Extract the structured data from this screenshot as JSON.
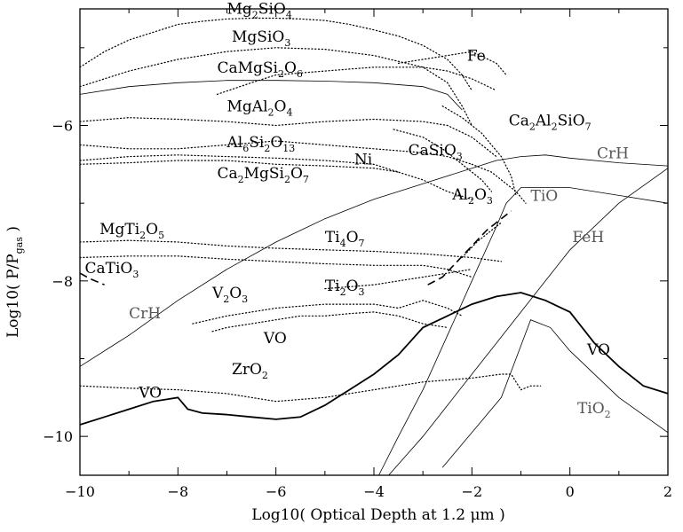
{
  "chart_data": {
    "type": "line",
    "xlabel": "Log10( Optical Depth at 1.2 μm )",
    "ylabel": "Log10( P/P_gas )",
    "xlim": [
      -10,
      2
    ],
    "ylim": [
      -10.5,
      -4.5
    ],
    "xticks": [
      "−10",
      "−8",
      "−6",
      "−4",
      "−2",
      "0",
      "2"
    ],
    "yticks": [
      "−10",
      "−8",
      "−6"
    ],
    "grid": false,
    "series": [
      {
        "name": "Mg2SiO4",
        "style": "dotted",
        "x": [
          -10,
          -9.5,
          -9,
          -8.5,
          -8,
          -7.5,
          -7,
          -6.5,
          -6,
          -5.5,
          -5,
          -4.5,
          -4,
          -3.5,
          -3,
          -2.5,
          -2.2,
          -2
        ],
        "y": [
          -5.25,
          -5.05,
          -4.9,
          -4.8,
          -4.7,
          -4.66,
          -4.63,
          -4.62,
          -4.62,
          -4.63,
          -4.65,
          -4.7,
          -4.77,
          -4.85,
          -4.97,
          -5.15,
          -5.35,
          -5.55
        ]
      },
      {
        "name": "MgSiO3",
        "style": "dotted",
        "x": [
          -10,
          -9,
          -8,
          -7,
          -6,
          -5,
          -4,
          -3,
          -2.5,
          -2.2,
          -2
        ],
        "y": [
          -5.5,
          -5.3,
          -5.15,
          -5.05,
          -5.0,
          -5.02,
          -5.1,
          -5.25,
          -5.45,
          -5.75,
          -6.0
        ]
      },
      {
        "name": "CaMgSi2O6",
        "style": "dotted",
        "x": [
          -7.2,
          -6.5,
          -6,
          -5,
          -4,
          -3,
          -2.5,
          -2,
          -1.5
        ],
        "y": [
          -5.6,
          -5.45,
          -5.35,
          -5.3,
          -5.25,
          -5.25,
          -5.3,
          -5.4,
          -5.55
        ]
      },
      {
        "name": "",
        "style": "thin",
        "x": [
          -10,
          -9,
          -8,
          -7,
          -6,
          -5,
          -4,
          -3,
          -2.5,
          -2.2
        ],
        "y": [
          -5.6,
          -5.5,
          -5.45,
          -5.42,
          -5.42,
          -5.43,
          -5.45,
          -5.5,
          -5.6,
          -5.8
        ]
      },
      {
        "name": "Fe",
        "style": "dotted",
        "x": [
          -3.5,
          -3,
          -2.5,
          -2,
          -1.5,
          -1.3
        ],
        "y": [
          -5.2,
          -5.15,
          -5.1,
          -5.05,
          -5.2,
          -5.35
        ]
      },
      {
        "name": "MgAl2O4",
        "style": "dotted",
        "x": [
          -10,
          -9,
          -8,
          -7,
          -6,
          -5,
          -4,
          -3,
          -2.5,
          -2,
          -1.5
        ],
        "y": [
          -5.95,
          -5.9,
          -5.92,
          -5.95,
          -6.0,
          -5.95,
          -5.92,
          -5.95,
          -6.0,
          -6.15,
          -6.4
        ]
      },
      {
        "name": "Ca2Al2SiO7",
        "style": "dotted",
        "x": [
          -2.6,
          -2.2,
          -1.8,
          -1.4,
          -1.2,
          -1.1
        ],
        "y": [
          -5.75,
          -5.9,
          -6.1,
          -6.4,
          -6.65,
          -6.9
        ]
      },
      {
        "name": "Al6Si2O13",
        "style": "dotted",
        "x": [
          -10,
          -9,
          -8,
          -7,
          -6,
          -5,
          -4,
          -3,
          -2.5,
          -2
        ],
        "y": [
          -6.25,
          -6.3,
          -6.3,
          -6.25,
          -6.2,
          -6.25,
          -6.3,
          -6.35,
          -6.4,
          -6.5
        ]
      },
      {
        "name": "Ca2MgSi2O7",
        "style": "dotted",
        "x": [
          -10,
          -9,
          -8,
          -7,
          -6,
          -5,
          -4,
          -3.5
        ],
        "y": [
          -6.5,
          -6.48,
          -6.45,
          -6.45,
          -6.5,
          -6.52,
          -6.55,
          -6.6
        ]
      },
      {
        "name": "Ni",
        "style": "dotted",
        "x": [
          -10,
          -9,
          -8,
          -7,
          -6,
          -5,
          -4,
          -3,
          -2.5,
          -2
        ],
        "y": [
          -6.45,
          -6.4,
          -6.38,
          -6.4,
          -6.42,
          -6.45,
          -6.5,
          -6.7,
          -6.85,
          -6.95
        ]
      },
      {
        "name": "CaSiO3",
        "style": "dotted",
        "x": [
          -3.6,
          -3,
          -2.6,
          -2.2,
          -1.8,
          -1.6
        ],
        "y": [
          -6.05,
          -6.15,
          -6.3,
          -6.5,
          -6.7,
          -6.85
        ]
      },
      {
        "name": "Al2O3",
        "style": "dotted",
        "x": [
          -2,
          -1.6,
          -1.3,
          -1.1,
          -0.9
        ],
        "y": [
          -6.5,
          -6.6,
          -6.75,
          -6.85,
          -7.0
        ]
      },
      {
        "name": "CrH",
        "style": "thin",
        "x": [
          -10,
          -9,
          -8,
          -7,
          -6,
          -5,
          -4,
          -3,
          -2,
          -1.5,
          -1,
          -0.5,
          0,
          1,
          2
        ],
        "y": [
          -9.1,
          -8.7,
          -8.25,
          -7.85,
          -7.5,
          -7.2,
          -6.95,
          -6.75,
          -6.55,
          -6.45,
          -6.4,
          -6.38,
          -6.42,
          -6.48,
          -6.52
        ]
      },
      {
        "name": "MgTi2O5",
        "style": "dotted",
        "x": [
          -10,
          -9,
          -8,
          -7,
          -6,
          -5,
          -4,
          -3,
          -2,
          -1.4
        ],
        "y": [
          -7.5,
          -7.48,
          -7.5,
          -7.55,
          -7.58,
          -7.6,
          -7.62,
          -7.65,
          -7.7,
          -7.75
        ]
      },
      {
        "name": "Ti4O7",
        "style": "dotted",
        "x": [
          -10,
          -9,
          -8,
          -7,
          -6,
          -5,
          -4,
          -3,
          -2.5,
          -2
        ],
        "y": [
          -7.7,
          -7.68,
          -7.68,
          -7.72,
          -7.75,
          -7.78,
          -7.8,
          -7.8,
          -7.85,
          -7.95
        ]
      },
      {
        "name": "",
        "style": "dashed",
        "x": [
          -2.9,
          -2.6,
          -2.3,
          -2.0,
          -1.7,
          -1.4,
          -1.2
        ],
        "y": [
          -8.05,
          -7.95,
          -7.75,
          -7.55,
          -7.35,
          -7.2,
          -7.1
        ]
      },
      {
        "name": "",
        "style": "dotted",
        "x": [
          -2.2,
          -1.9,
          -1.6,
          -1.4
        ],
        "y": [
          -7.7,
          -7.5,
          -7.35,
          -7.25
        ]
      },
      {
        "name": "CaTiO3",
        "style": "dashed",
        "x": [
          -10,
          -9.8,
          -9.5
        ],
        "y": [
          -7.9,
          -7.97,
          -8.05
        ]
      },
      {
        "name": "Ti2O3",
        "style": "dotted",
        "x": [
          -5,
          -4,
          -3,
          -2.5,
          -2
        ],
        "y": [
          -8.1,
          -8.05,
          -7.95,
          -7.9,
          -7.85
        ]
      },
      {
        "name": "V2O3",
        "style": "dotted",
        "x": [
          -7.7,
          -7,
          -6,
          -5,
          -4,
          -3.5,
          -3,
          -2.5,
          -2.2
        ],
        "y": [
          -8.55,
          -8.45,
          -8.35,
          -8.3,
          -8.3,
          -8.35,
          -8.25,
          -8.35,
          -8.45
        ]
      },
      {
        "name": "VO (dotted)",
        "style": "dotted",
        "x": [
          -7.3,
          -7,
          -6.5,
          -6,
          -5.5,
          -5,
          -4.5,
          -4,
          -3.5,
          -3,
          -2.5
        ],
        "y": [
          -8.65,
          -8.6,
          -8.55,
          -8.5,
          -8.45,
          -8.45,
          -8.42,
          -8.4,
          -8.45,
          -8.55,
          -8.6
        ]
      },
      {
        "name": "TiO",
        "style": "thin",
        "x": [
          -3.9,
          -3.5,
          -3,
          -2.5,
          -2,
          -1.5,
          -1.3,
          -1,
          -0.8,
          0,
          1,
          2
        ],
        "y": [
          -10.5,
          -10.0,
          -9.4,
          -8.7,
          -8.0,
          -7.3,
          -7.0,
          -6.8,
          -6.8,
          -6.8,
          -6.9,
          -7.0
        ]
      },
      {
        "name": "FeH",
        "style": "thin",
        "x": [
          -3.7,
          -3,
          -2.5,
          -2,
          -1.5,
          -1,
          -0.5,
          0,
          1,
          2
        ],
        "y": [
          -10.5,
          -10.0,
          -9.6,
          -9.2,
          -8.8,
          -8.4,
          -8.0,
          -7.6,
          -7.0,
          -6.55
        ]
      },
      {
        "name": "TiO2",
        "style": "thin",
        "x": [
          -2.6,
          -2.2,
          -1.8,
          -1.4,
          -1.1,
          -0.8,
          -0.6,
          -0.4,
          0,
          1,
          2
        ],
        "y": [
          -10.4,
          -10.1,
          -9.8,
          -9.5,
          -9.0,
          -8.5,
          -8.55,
          -8.6,
          -8.9,
          -9.5,
          -9.95
        ]
      },
      {
        "name": "ZrO2",
        "style": "dotted",
        "x": [
          -10,
          -9,
          -8,
          -7,
          -6,
          -5,
          -4,
          -3,
          -2,
          -1.4,
          -1.2,
          -1,
          -0.8,
          -0.6
        ],
        "y": [
          -9.35,
          -9.38,
          -9.4,
          -9.45,
          -9.55,
          -9.5,
          -9.4,
          -9.3,
          -9.25,
          -9.2,
          -9.2,
          -9.4,
          -9.35,
          -9.35
        ]
      },
      {
        "name": "VO",
        "style": "thick",
        "x": [
          -10,
          -9.5,
          -9,
          -8.5,
          -8.2,
          -8,
          -7.8,
          -7.5,
          -7,
          -6.5,
          -6,
          -5.5,
          -5,
          -4.5,
          -4,
          -3.5,
          -3,
          -2.5,
          -2,
          -1.5,
          -1,
          -0.5,
          0,
          0.5,
          1,
          1.5,
          2
        ],
        "y": [
          -9.85,
          -9.75,
          -9.65,
          -9.55,
          -9.52,
          -9.5,
          -9.65,
          -9.7,
          -9.72,
          -9.75,
          -9.78,
          -9.75,
          -9.6,
          -9.4,
          -9.2,
          -8.95,
          -8.6,
          -8.45,
          -8.3,
          -8.2,
          -8.15,
          -8.25,
          -8.4,
          -8.8,
          -9.1,
          -9.35,
          -9.45
        ]
      }
    ],
    "annotations": [
      {
        "x": -7.0,
        "y": -4.56,
        "parts": [
          [
            "Mg",
            ""
          ],
          [
            "2",
            "sub"
          ],
          [
            "SiO",
            ""
          ],
          [
            "4",
            "sub"
          ]
        ]
      },
      {
        "x": -6.9,
        "y": -4.92,
        "parts": [
          [
            "MgSiO",
            ""
          ],
          [
            "3",
            "sub"
          ]
        ]
      },
      {
        "x": -7.2,
        "y": -5.32,
        "parts": [
          [
            "CaMgSi",
            ""
          ],
          [
            "2",
            "sub"
          ],
          [
            "O",
            ""
          ],
          [
            "6",
            "sub"
          ]
        ]
      },
      {
        "x": -2.1,
        "y": -5.17,
        "parts": [
          [
            "Fe",
            ""
          ]
        ]
      },
      {
        "x": -7.0,
        "y": -5.82,
        "parts": [
          [
            "MgAl",
            ""
          ],
          [
            "2",
            "sub"
          ],
          [
            "O",
            ""
          ],
          [
            "4",
            "sub"
          ]
        ]
      },
      {
        "x": -1.25,
        "y": -6.0,
        "parts": [
          [
            "Ca",
            ""
          ],
          [
            "2",
            "sub"
          ],
          [
            "Al",
            ""
          ],
          [
            "2",
            "sub"
          ],
          [
            "SiO",
            ""
          ],
          [
            "7",
            "sub"
          ]
        ]
      },
      {
        "x": -7.0,
        "y": -6.28,
        "parts": [
          [
            "Al",
            ""
          ],
          [
            "6",
            "sub"
          ],
          [
            "Si",
            ""
          ],
          [
            "2",
            "sub"
          ],
          [
            "O",
            ""
          ],
          [
            "13",
            "sub"
          ]
        ]
      },
      {
        "x": -3.3,
        "y": -6.38,
        "parts": [
          [
            "CaSiO",
            ""
          ],
          [
            "3",
            "sub"
          ]
        ]
      },
      {
        "x": -4.4,
        "y": -6.5,
        "parts": [
          [
            "Ni",
            ""
          ]
        ]
      },
      {
        "x": -7.2,
        "y": -6.68,
        "parts": [
          [
            "Ca",
            ""
          ],
          [
            "2",
            "sub"
          ],
          [
            "MgSi",
            ""
          ],
          [
            "2",
            "sub"
          ],
          [
            "O",
            ""
          ],
          [
            "7",
            "sub"
          ]
        ]
      },
      {
        "x": 0.55,
        "y": -6.42,
        "parts": [
          [
            "CrH",
            ""
          ]
        ],
        "grey": true
      },
      {
        "x": -2.4,
        "y": -6.95,
        "parts": [
          [
            "Al",
            ""
          ],
          [
            "2",
            "sub"
          ],
          [
            "O",
            ""
          ],
          [
            "3",
            "sub"
          ]
        ]
      },
      {
        "x": -0.8,
        "y": -6.97,
        "parts": [
          [
            "TiO",
            ""
          ]
        ],
        "grey": true
      },
      {
        "x": -9.6,
        "y": -7.4,
        "parts": [
          [
            "MgTi",
            ""
          ],
          [
            "2",
            "sub"
          ],
          [
            "O",
            ""
          ],
          [
            "5",
            "sub"
          ]
        ]
      },
      {
        "x": -5.0,
        "y": -7.5,
        "parts": [
          [
            "Ti",
            ""
          ],
          [
            "4",
            "sub"
          ],
          [
            "O",
            ""
          ],
          [
            "7",
            "sub"
          ]
        ]
      },
      {
        "x": 0.05,
        "y": -7.5,
        "parts": [
          [
            "FeH",
            ""
          ]
        ],
        "grey": true
      },
      {
        "x": -9.9,
        "y": -7.9,
        "parts": [
          [
            "CaTiO",
            ""
          ],
          [
            "3",
            "sub"
          ]
        ]
      },
      {
        "x": -5.0,
        "y": -8.13,
        "parts": [
          [
            "Ti",
            ""
          ],
          [
            "2",
            "sub"
          ],
          [
            "O",
            ""
          ],
          [
            "3",
            "sub"
          ]
        ]
      },
      {
        "x": -9.0,
        "y": -8.48,
        "parts": [
          [
            "CrH",
            ""
          ]
        ],
        "grey": true
      },
      {
        "x": -7.3,
        "y": -8.22,
        "parts": [
          [
            "V",
            ""
          ],
          [
            "2",
            "sub"
          ],
          [
            "O",
            ""
          ],
          [
            "3",
            "sub"
          ]
        ]
      },
      {
        "x": -6.25,
        "y": -8.8,
        "parts": [
          [
            "VO",
            ""
          ]
        ]
      },
      {
        "x": 0.35,
        "y": -8.95,
        "parts": [
          [
            "VO",
            ""
          ]
        ]
      },
      {
        "x": -6.9,
        "y": -9.2,
        "parts": [
          [
            "ZrO",
            ""
          ],
          [
            "2",
            "sub"
          ]
        ]
      },
      {
        "x": -8.8,
        "y": -9.5,
        "parts": [
          [
            "VO",
            ""
          ]
        ]
      },
      {
        "x": 0.15,
        "y": -9.7,
        "parts": [
          [
            "TiO",
            ""
          ],
          [
            "2",
            "sub"
          ]
        ],
        "grey": true
      }
    ]
  }
}
